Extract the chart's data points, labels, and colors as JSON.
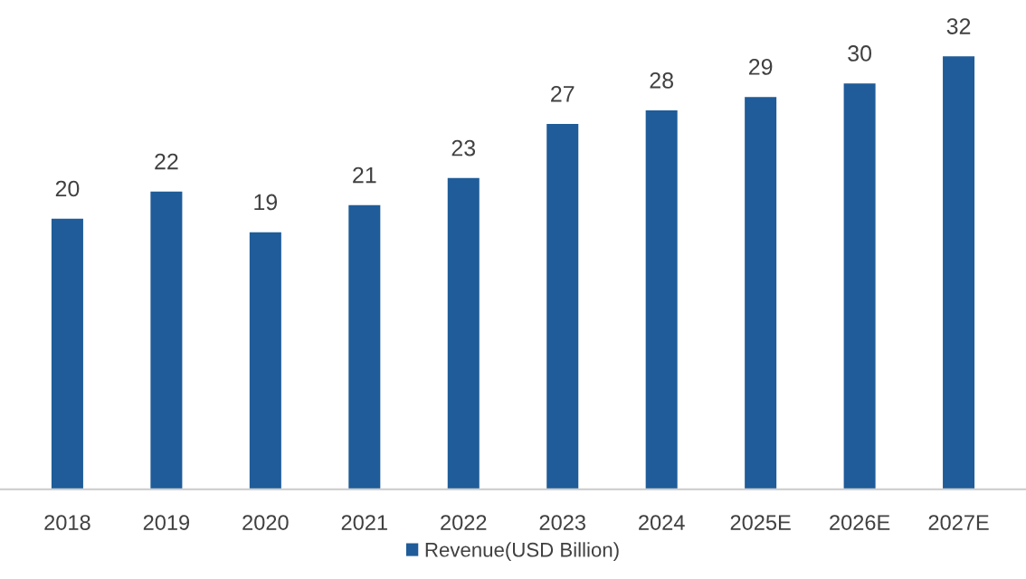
{
  "chart_data": {
    "type": "bar",
    "categories": [
      "2018",
      "2019",
      "2020",
      "2021",
      "2022",
      "2023",
      "2024",
      "2025E",
      "2026E",
      "2027E"
    ],
    "series": [
      {
        "name": "Revenue(USD Billion)",
        "color": "#1f5c99",
        "values": [
          20,
          22,
          19,
          21,
          23,
          27,
          28,
          29,
          30,
          32
        ]
      }
    ],
    "data_labels": true,
    "legend": "bottom",
    "grid": false
  }
}
